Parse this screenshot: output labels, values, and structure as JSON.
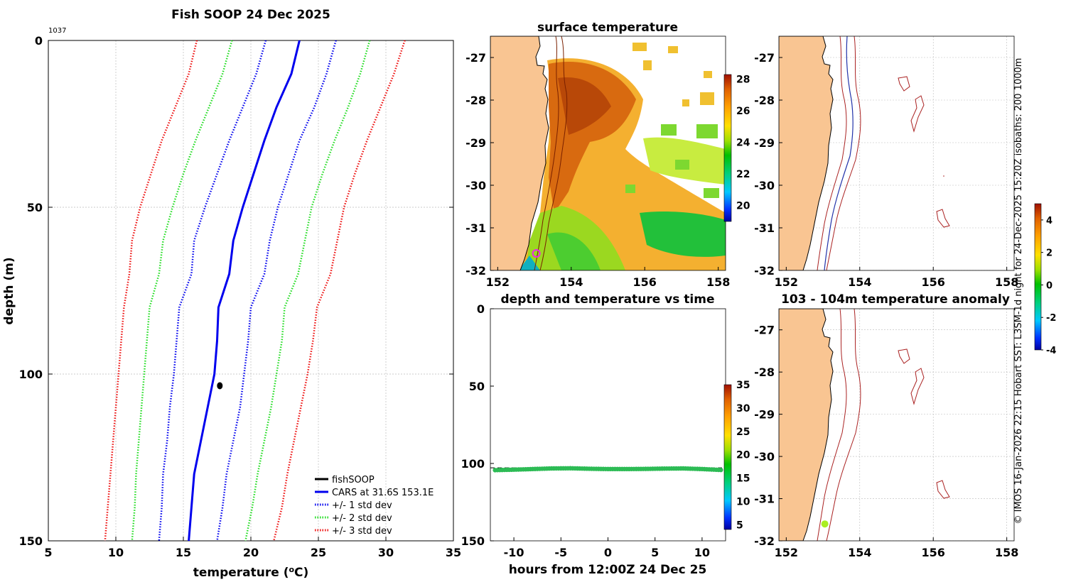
{
  "figure": {
    "credit": "© IMOS 16-Jan-2026 22:15 Hobart SST: L3SM-1d night for 24-Dec-2025 15:20Z isobaths: 200  1000m"
  },
  "chart_data": [
    {
      "id": "profile",
      "type": "line",
      "title": "Fish SOOP 24 Dec 2025",
      "annotation": "1037",
      "xlabel": "temperature (°C)",
      "xlabel_main": "temperature (",
      "xlabel_sup": "o",
      "xlabel_end": "C)",
      "ylabel": "depth (m)",
      "xlim": [
        5,
        35
      ],
      "ylim": [
        0,
        150
      ],
      "y_reversed": true,
      "grid": true,
      "xticks": [
        5,
        10,
        15,
        20,
        25,
        30,
        35
      ],
      "yticks": [
        0,
        50,
        100,
        150
      ],
      "depth": [
        0,
        10,
        20,
        30,
        40,
        50,
        60,
        70,
        80,
        90,
        100,
        110,
        120,
        130,
        140,
        150
      ],
      "series": [
        {
          "name": "CARS at 31.6S 153.1E",
          "color": "#0000ee",
          "style": "solid",
          "values": [
            23.6,
            23.0,
            21.9,
            21.0,
            20.2,
            19.4,
            18.7,
            18.4,
            17.6,
            17.5,
            17.3,
            16.8,
            16.3,
            15.8,
            15.6,
            15.4
          ]
        },
        {
          "name": "+/- 1 std dev",
          "label": "+/- 1 std dev",
          "color": "#0000ee",
          "style": "dotted",
          "values": [
            21.1,
            20.4,
            19.4,
            18.4,
            17.5,
            16.6,
            15.8,
            15.6,
            14.7,
            14.5,
            14.3,
            14.0,
            13.8,
            13.5,
            13.4,
            13.2
          ]
        },
        {
          "name": "upper 1 std",
          "color": "#0000ee",
          "style": "dotted",
          "values": [
            26.3,
            25.6,
            24.7,
            23.6,
            22.8,
            22.0,
            21.4,
            21.0,
            20.0,
            19.8,
            19.5,
            19.2,
            18.7,
            18.2,
            17.9,
            17.5
          ]
        },
        {
          "name": "+/- 2 std dev",
          "label": "+/- 2 std dev",
          "color": "#22dd22",
          "style": "dotted",
          "values": [
            18.6,
            17.9,
            16.9,
            15.9,
            15.0,
            14.2,
            13.5,
            13.2,
            12.5,
            12.3,
            12.1,
            11.9,
            11.7,
            11.5,
            11.4,
            11.2
          ]
        },
        {
          "name": "upper 2 std",
          "color": "#22dd22",
          "style": "dotted",
          "values": [
            28.8,
            28.1,
            27.2,
            26.2,
            25.3,
            24.5,
            24.0,
            23.5,
            22.5,
            22.3,
            21.9,
            21.5,
            21.0,
            20.5,
            20.1,
            19.6
          ]
        },
        {
          "name": "+/- 3 std dev",
          "label": "+/- 3 std dev",
          "color": "#ee1111",
          "style": "dotted",
          "values": [
            16.0,
            15.4,
            14.4,
            13.4,
            12.6,
            11.8,
            11.2,
            11.0,
            10.6,
            10.4,
            10.2,
            10.0,
            9.8,
            9.6,
            9.4,
            9.2
          ]
        },
        {
          "name": "upper 3 std",
          "color": "#ee1111",
          "style": "dotted",
          "values": [
            31.4,
            30.6,
            29.6,
            28.6,
            27.7,
            26.9,
            26.4,
            25.9,
            24.9,
            24.6,
            24.2,
            23.7,
            23.2,
            22.7,
            22.3,
            21.7
          ]
        }
      ],
      "observed": {
        "name": "fishSOOP",
        "label": "fishSOOP",
        "color": "#000000",
        "temperature": 17.7,
        "depth": 103.5
      },
      "legend": {
        "placement": "bottom-right",
        "entries": [
          "fishSOOP",
          "CARS at 31.6S 153.1E",
          "+/- 1 std dev",
          "+/- 2 std dev",
          "+/- 3 std dev"
        ]
      }
    },
    {
      "id": "sst_map",
      "type": "heatmap",
      "title": "surface temperature",
      "xlim": [
        151.8,
        158.2
      ],
      "ylim": [
        -32,
        -26.5
      ],
      "xticks": [
        152,
        154,
        156,
        158
      ],
      "yticks": [
        -27,
        -28,
        -29,
        -30,
        -31,
        -32
      ],
      "colorbar": {
        "min": 19,
        "max": 28.3,
        "ticks": [
          20,
          22,
          24,
          26,
          28
        ]
      },
      "marker": {
        "lon": 153.05,
        "lat": -31.6,
        "color": "#ee22ee"
      }
    },
    {
      "id": "depth_time",
      "type": "scatter",
      "title": "depth and temperature vs time",
      "xlabel": "hours from 12:00Z 24 Dec 25",
      "xlim": [
        -12.5,
        12.5
      ],
      "ylim": [
        0,
        150
      ],
      "y_reversed": true,
      "xticks": [
        -10,
        -5,
        0,
        5,
        10
      ],
      "yticks": [
        0,
        50,
        100,
        150
      ],
      "hours": [
        -12,
        -10,
        -8,
        -6,
        -4,
        -2,
        0,
        2,
        4,
        6,
        8,
        10,
        12
      ],
      "depth_values": [
        104.3,
        104.0,
        103.6,
        103.2,
        103.1,
        103.4,
        103.6,
        103.6,
        103.5,
        103.3,
        103.2,
        103.6,
        104.2
      ],
      "reference_depth": 102.8,
      "point_color": "#2dbb55",
      "colorbar": {
        "min": 4,
        "max": 35,
        "ticks": [
          5,
          10,
          15,
          20,
          25,
          30,
          35
        ]
      }
    },
    {
      "id": "coast_map",
      "type": "map",
      "title": "",
      "xlim": [
        151.8,
        158.2
      ],
      "ylim": [
        -32,
        -26.5
      ],
      "xticks": [
        152,
        154,
        156,
        158
      ],
      "yticks": [
        -27,
        -28,
        -29,
        -30,
        -31,
        -32
      ],
      "colorbar": {
        "min": -4,
        "max": 5,
        "ticks": [
          4,
          2,
          0,
          -2,
          -4
        ]
      }
    },
    {
      "id": "anomaly_map",
      "type": "map",
      "title": "103 - 104m temperature anomaly",
      "xlim": [
        151.8,
        158.2
      ],
      "ylim": [
        -32,
        -26.5
      ],
      "xticks": [
        152,
        154,
        156,
        158
      ],
      "yticks": [
        -27,
        -28,
        -29,
        -30,
        -31,
        -32
      ],
      "marker": {
        "lon": 153.05,
        "lat": -31.6,
        "color": "#aaee22"
      }
    }
  ]
}
